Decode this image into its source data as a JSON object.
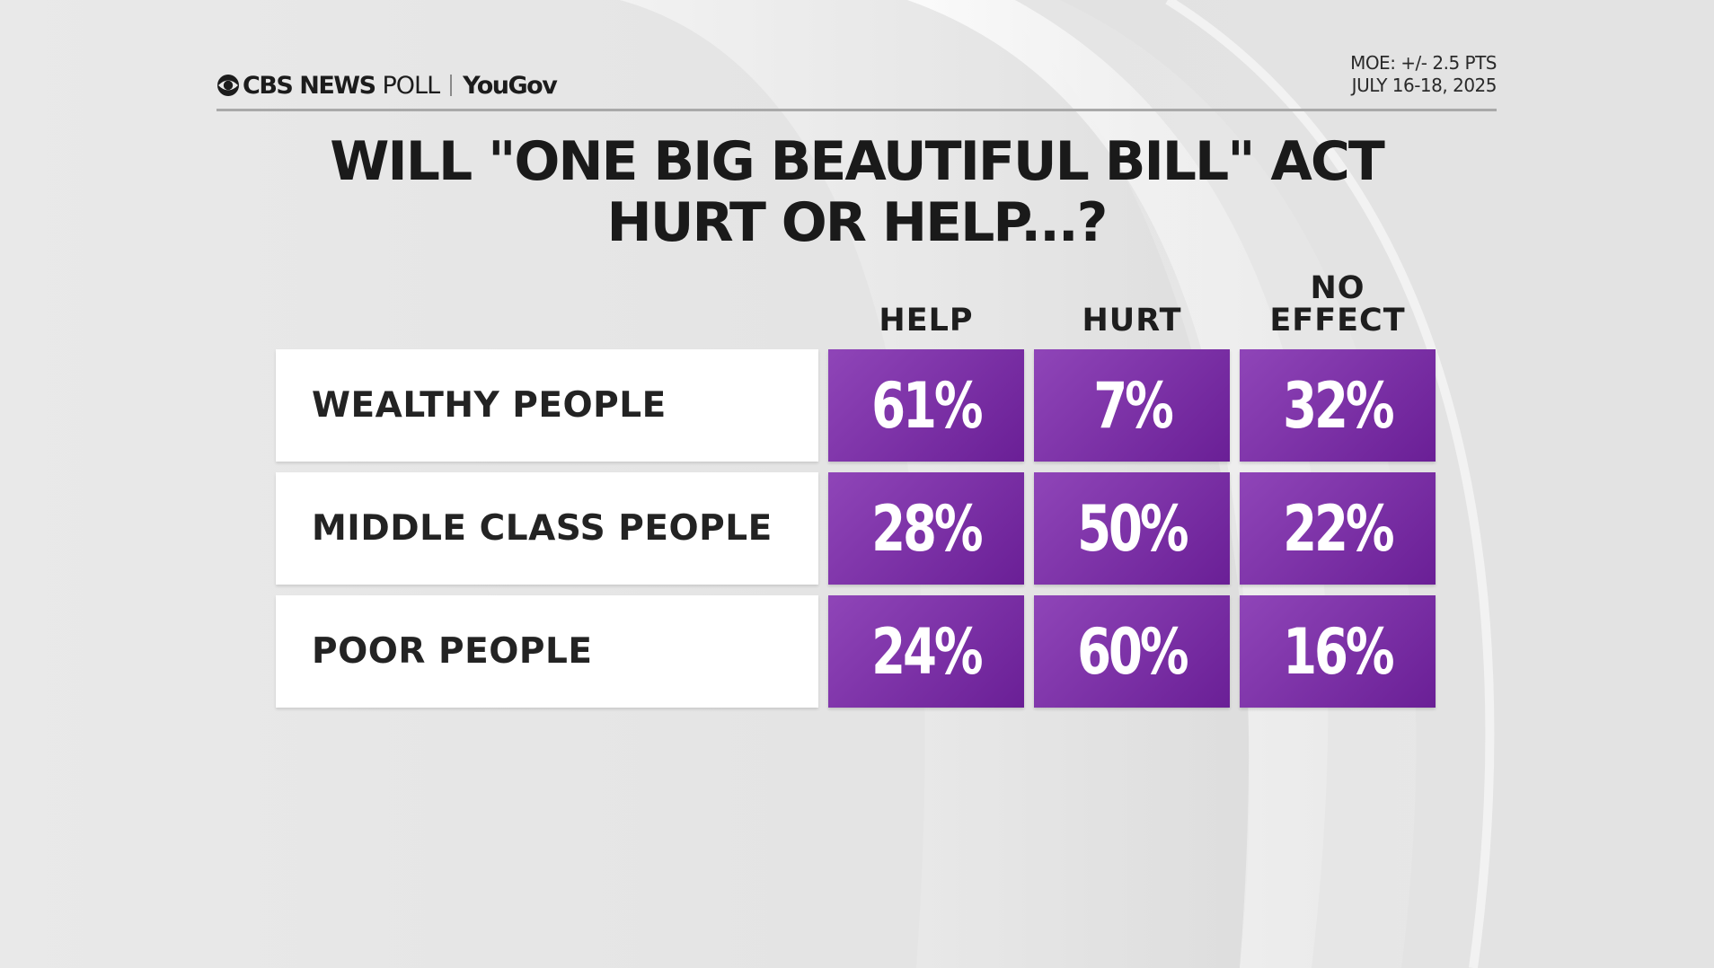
{
  "header": {
    "brand_cbs": "CBS NEWS",
    "brand_poll": "POLL",
    "brand_yougov": "YouGov",
    "moe": "MOE: +/- 2.5 PTS",
    "dates": "JULY 16-18, 2025"
  },
  "chart_data": {
    "type": "table",
    "title_lines": [
      "WILL \"ONE BIG BEAUTIFUL BILL\" ACT",
      "HURT OR HELP...?"
    ],
    "columns": [
      {
        "lines": [
          "HELP"
        ]
      },
      {
        "lines": [
          "HURT"
        ]
      },
      {
        "lines": [
          "NO",
          "EFFECT"
        ]
      }
    ],
    "rows": [
      {
        "label": "WEALTHY PEOPLE",
        "values": [
          61,
          7,
          32
        ]
      },
      {
        "label": "MIDDLE CLASS PEOPLE",
        "values": [
          28,
          50,
          22
        ]
      },
      {
        "label": "POOR PEOPLE",
        "values": [
          24,
          60,
          16
        ]
      }
    ],
    "value_suffix": "%",
    "colors": {
      "cell_light": "#8f45b8",
      "cell_dark": "#6a1f96",
      "label_bg": "#ffffff",
      "text_dark": "#1a1a1a"
    }
  }
}
